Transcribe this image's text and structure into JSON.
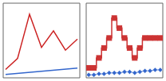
{
  "chart_data": [
    {
      "type": "line",
      "xlim": [
        -0.2,
        6.2
      ],
      "ylim": [
        -0.1,
        2.6
      ],
      "tick_labels": false,
      "series": [
        {
          "color": "#cc2222",
          "x": [
            0,
            1,
            2,
            3,
            4,
            5,
            6
          ],
          "values": [
            0.2,
            0.6,
            2.2,
            1.0,
            1.6,
            0.9,
            1.3
          ]
        },
        {
          "color": "#3366cc",
          "x": [
            0,
            6
          ],
          "values": [
            0.02,
            0.25
          ]
        }
      ]
    },
    {
      "type": "line",
      "xlim": [
        -0.5,
        14.5
      ],
      "ylim": [
        0.0,
        7.5
      ],
      "tick_labels": false,
      "series": [
        {
          "color": "#cc3333",
          "marker": "square",
          "line_style": "step",
          "x": [
            0,
            1,
            2,
            3,
            4,
            5,
            6,
            7,
            8,
            9,
            10,
            11,
            12,
            13,
            14
          ],
          "values": [
            1,
            1,
            2,
            3,
            4,
            6,
            5,
            4,
            3,
            2,
            3,
            4,
            4,
            4,
            4
          ]
        },
        {
          "color": "#3366cc",
          "marker": "diamond",
          "x": [
            0,
            1,
            2,
            3,
            4,
            5,
            6,
            7,
            8,
            9,
            10,
            11,
            12,
            13,
            14
          ],
          "values": [
            0.3,
            0.3,
            0.4,
            0.4,
            0.5,
            0.5,
            0.5,
            0.6,
            0.6,
            0.5,
            0.6,
            0.7,
            0.7,
            0.8,
            0.8
          ]
        }
      ]
    }
  ]
}
